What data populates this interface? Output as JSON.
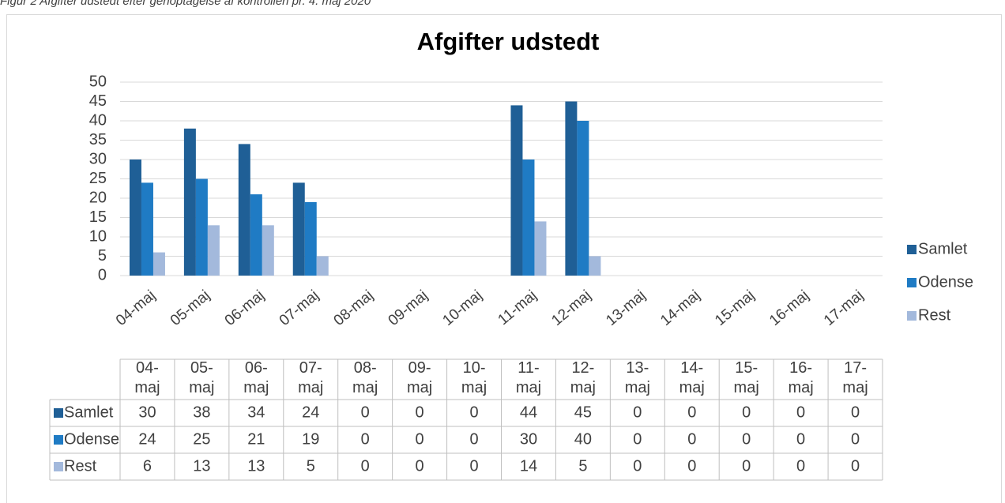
{
  "caption": "Figur 2 Afgifter udstedt efter genoptagelse af kontrollen pr. 4. maj 2020",
  "chart_data": {
    "type": "bar",
    "title": "Afgifter udstedt",
    "categories": [
      "04-maj",
      "05-maj",
      "06-maj",
      "07-maj",
      "08-maj",
      "09-maj",
      "10-maj",
      "11-maj",
      "12-maj",
      "13-maj",
      "14-maj",
      "15-maj",
      "16-maj",
      "17-maj"
    ],
    "series": [
      {
        "name": "Samlet",
        "color": "#1f5f96",
        "values": [
          30,
          38,
          34,
          24,
          0,
          0,
          0,
          44,
          45,
          0,
          0,
          0,
          0,
          0
        ]
      },
      {
        "name": "Odense",
        "color": "#1f7bc4",
        "values": [
          24,
          25,
          21,
          19,
          0,
          0,
          0,
          30,
          40,
          0,
          0,
          0,
          0,
          0
        ]
      },
      {
        "name": "Rest",
        "color": "#a3b9dc",
        "values": [
          6,
          13,
          13,
          5,
          0,
          0,
          0,
          14,
          5,
          0,
          0,
          0,
          0,
          0
        ]
      }
    ],
    "ylim": [
      0,
      50
    ],
    "yticks": [
      0,
      5,
      10,
      15,
      20,
      25,
      30,
      35,
      40,
      45,
      50
    ],
    "grid": true,
    "legend": "right"
  }
}
